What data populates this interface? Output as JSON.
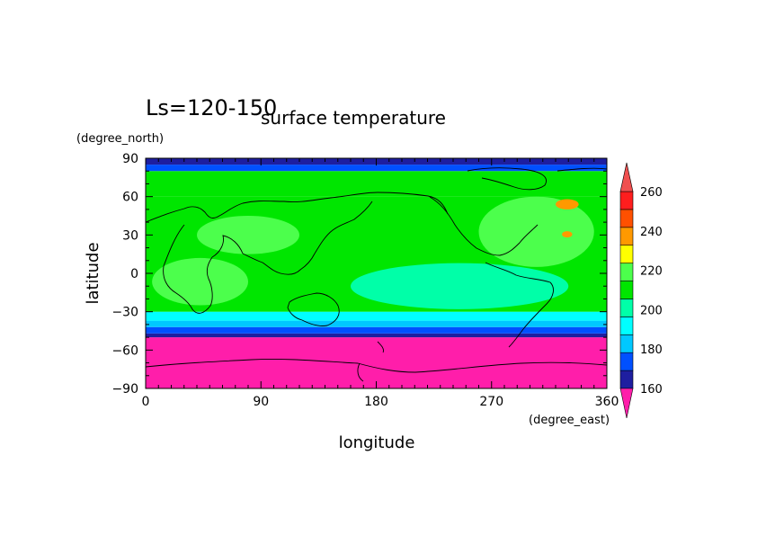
{
  "chart_data": {
    "type": "heatmap",
    "period_label": "Ls=120-150",
    "title": "surface temperature",
    "xlabel": "longitude",
    "ylabel": "latitude",
    "xunit": "(degree_east)",
    "yunit": "(degree_north)",
    "xlim": [
      0,
      360
    ],
    "ylim": [
      -90,
      90
    ],
    "xticks": [
      "0",
      "90",
      "180",
      "270",
      "360"
    ],
    "yticks": [
      "90",
      "60",
      "30",
      "0",
      "-30",
      "-60",
      "-90"
    ],
    "colorbar": {
      "levels": [
        160,
        170,
        180,
        190,
        200,
        210,
        220,
        230,
        240,
        250,
        260
      ],
      "tick_labels": [
        "160",
        "180",
        "200",
        "220",
        "240",
        "260"
      ],
      "colors": [
        "#1e1ea0",
        "#0050ff",
        "#00c8ff",
        "#00ffff",
        "#00ffa8",
        "#00e600",
        "#4cff4c",
        "#ffff00",
        "#ff9900",
        "#ff5000",
        "#ff1e1e"
      ],
      "under_color": "#ff1eaa",
      "over_color": "#f05050"
    },
    "bands": [
      {
        "lat_range": [
          -90,
          -50
        ],
        "value": 150
      },
      {
        "lat_range": [
          -50,
          -47
        ],
        "value": 165
      },
      {
        "lat_range": [
          -47,
          -42
        ],
        "value": 175
      },
      {
        "lat_range": [
          -42,
          -37
        ],
        "value": 185
      },
      {
        "lat_range": [
          -37,
          -30
        ],
        "value": 195
      },
      {
        "lat_range": [
          -30,
          60
        ],
        "value": 215
      },
      {
        "lat_range": [
          60,
          80
        ],
        "value": 215
      },
      {
        "lat_range": [
          80,
          85
        ],
        "value": 175
      },
      {
        "lat_range": [
          85,
          90
        ],
        "value": 165
      }
    ],
    "regions": [
      {
        "shape": "blob",
        "lon_range": [
          160,
          330
        ],
        "lat_range": [
          -28,
          8
        ],
        "value": 205
      },
      {
        "shape": "blob",
        "lon_range": [
          5,
          80
        ],
        "lat_range": [
          -25,
          12
        ],
        "value": 225
      },
      {
        "shape": "blob",
        "lon_range": [
          260,
          350
        ],
        "lat_range": [
          5,
          60
        ],
        "value": 225
      },
      {
        "shape": "blob",
        "lon_range": [
          40,
          120
        ],
        "lat_range": [
          15,
          45
        ],
        "value": 225
      },
      {
        "shape": "blob",
        "lon_range": [
          320,
          338
        ],
        "lat_range": [
          50,
          58
        ],
        "value": 245
      },
      {
        "shape": "blob",
        "lon_range": [
          325,
          333
        ],
        "lat_range": [
          28,
          33
        ],
        "value": 245
      }
    ]
  }
}
